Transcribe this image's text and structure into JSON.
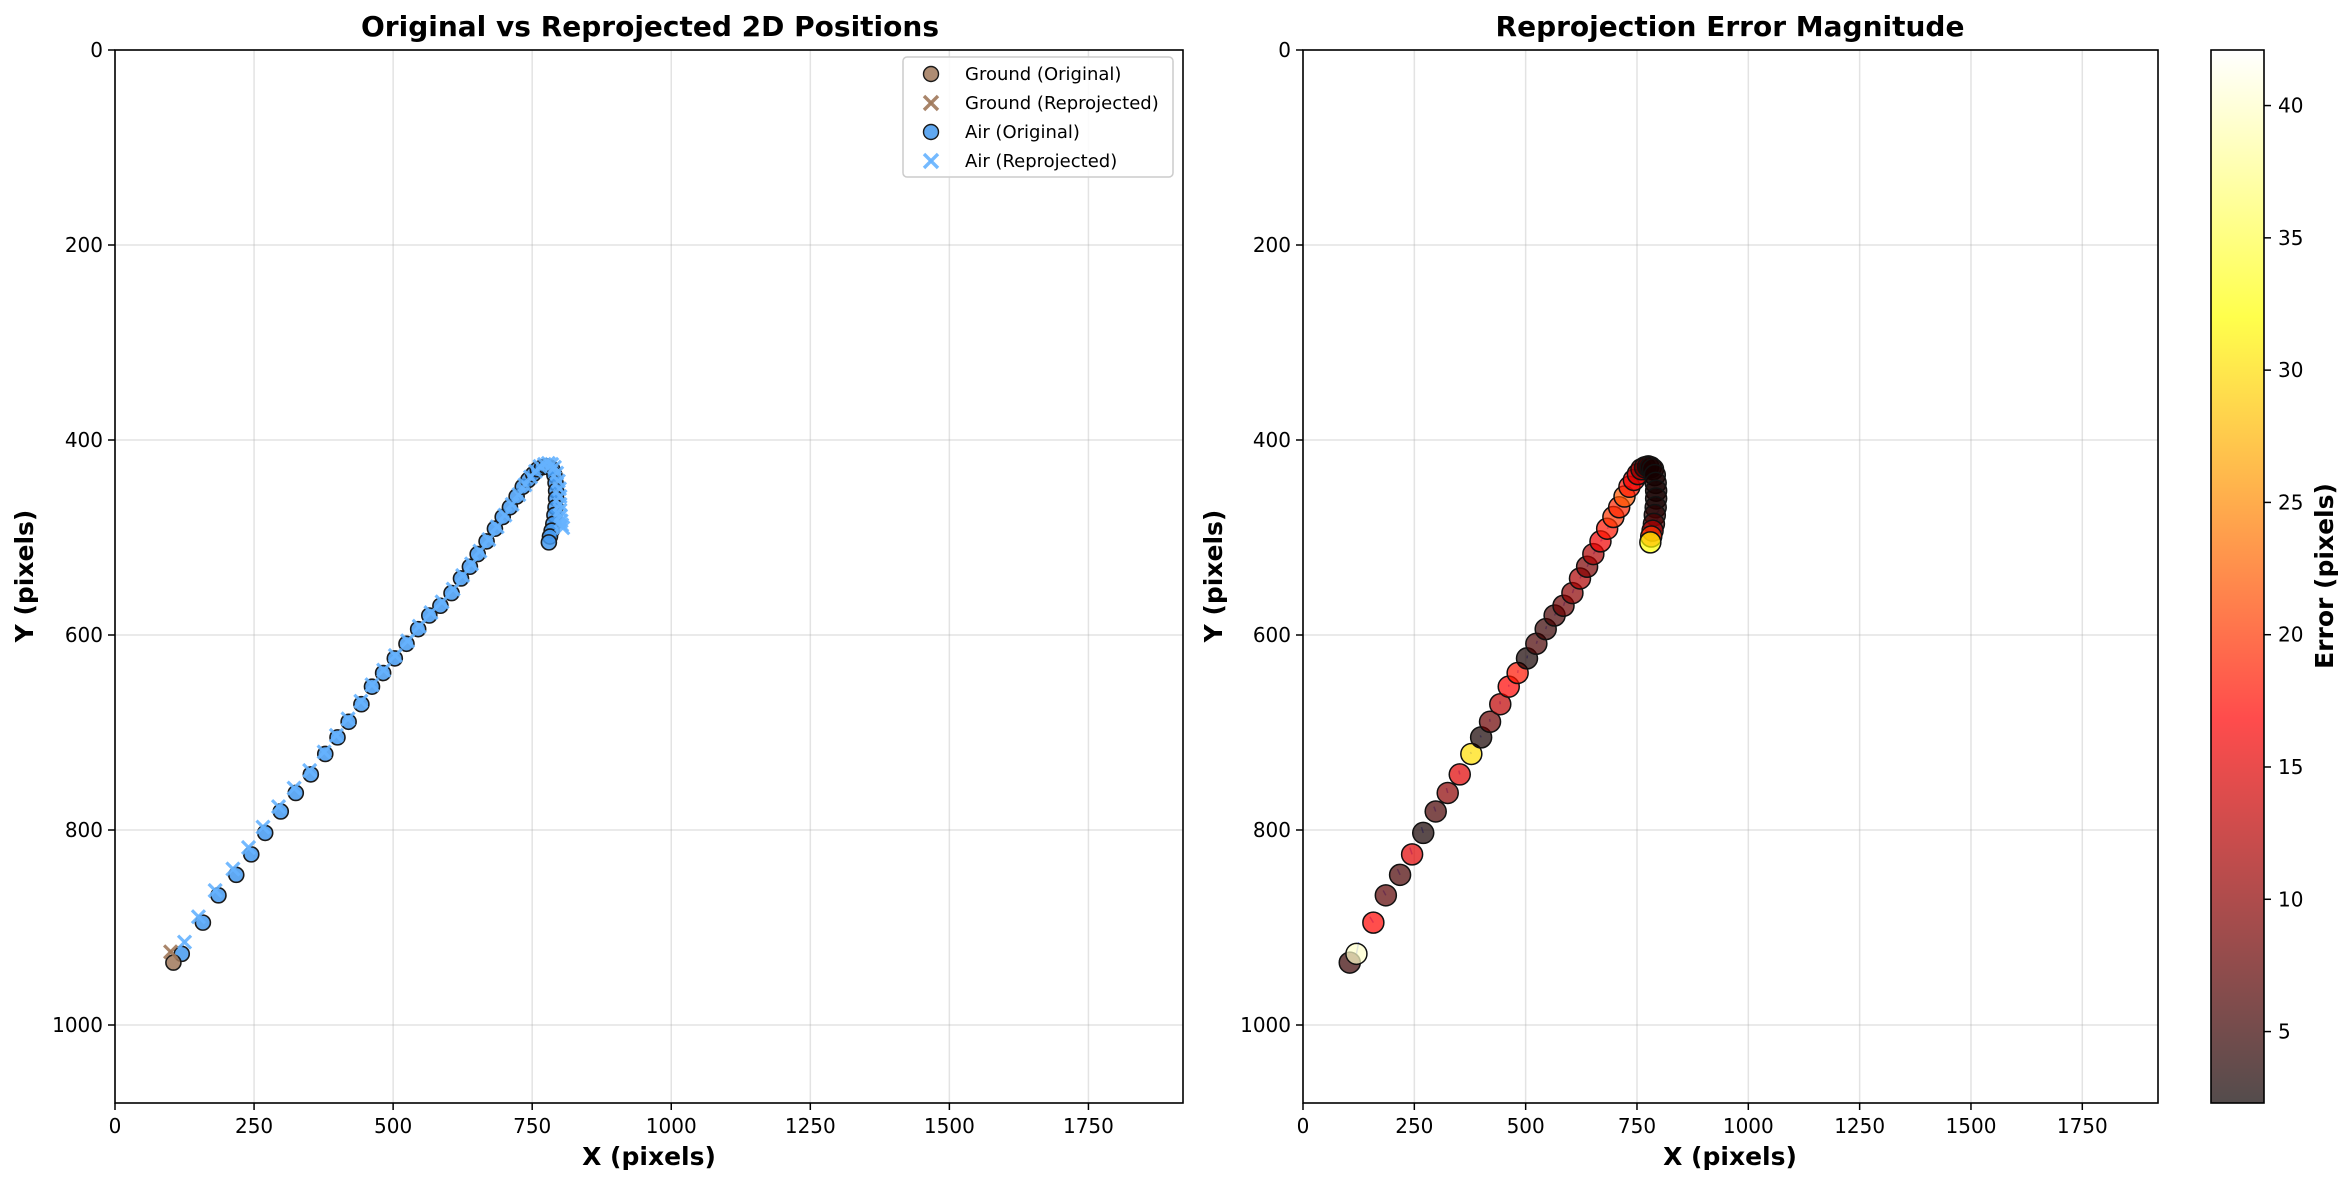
{
  "chart_data": [
    {
      "type": "scatter",
      "title": "Original vs Reprojected 2D Positions",
      "xlabel": "X (pixels)",
      "ylabel": "Y (pixels)",
      "xlim": [
        0,
        1920
      ],
      "ylim": [
        1080,
        0
      ],
      "y_inverted": true,
      "xticks": [
        0,
        250,
        500,
        750,
        1000,
        1250,
        1500,
        1750
      ],
      "yticks": [
        0,
        200,
        400,
        600,
        800,
        1000
      ],
      "grid": true,
      "legend_position": "top-right",
      "series": [
        {
          "name": "Ground (Original)",
          "marker": "circle",
          "color": "#a0785a",
          "x": [
            105
          ],
          "y": [
            936
          ]
        },
        {
          "name": "Ground (Reprojected)",
          "marker": "x",
          "color": "#a0785a",
          "x": [
            100
          ],
          "y": [
            925
          ]
        },
        {
          "name": "Air (Original)",
          "marker": "circle",
          "color": "#4499ee",
          "x": [
            120,
            158,
            186,
            218,
            245,
            270,
            298,
            325,
            352,
            378,
            400,
            420,
            443,
            462,
            482,
            503,
            524,
            545,
            565,
            585,
            605,
            622,
            638,
            652,
            668,
            683,
            697,
            710,
            722,
            733,
            743,
            752,
            760,
            768,
            775,
            781,
            786,
            790,
            792,
            793,
            793,
            792,
            790,
            788,
            785,
            782,
            780
          ],
          "y": [
            927,
            895,
            867,
            846,
            825,
            803,
            781,
            762,
            743,
            722,
            705,
            689,
            671,
            653,
            639,
            624,
            609,
            594,
            580,
            570,
            557,
            542,
            530,
            517,
            504,
            491,
            479,
            469,
            458,
            448,
            441,
            435,
            430,
            428,
            427,
            428,
            430,
            436,
            444,
            452,
            460,
            469,
            477,
            486,
            493,
            499,
            505
          ]
        },
        {
          "name": "Air (Reprojected)",
          "marker": "x",
          "color": "#66b3ff",
          "x": [
            125,
            150,
            180,
            212,
            240,
            266,
            294,
            322,
            350,
            376,
            398,
            419,
            442,
            462,
            483,
            504,
            526,
            547,
            568,
            588,
            608,
            625,
            641,
            656,
            672,
            687,
            701,
            714,
            726,
            737,
            747,
            756,
            764,
            772,
            779,
            785,
            790,
            794,
            797,
            799,
            800,
            800,
            800,
            801,
            802,
            803,
            805
          ],
          "y": [
            915,
            889,
            862,
            840,
            818,
            797,
            776,
            757,
            739,
            720,
            703,
            686,
            668,
            651,
            636,
            621,
            606,
            591,
            577,
            566,
            553,
            539,
            527,
            514,
            502,
            489,
            477,
            466,
            456,
            446,
            438,
            432,
            427,
            425,
            424,
            425,
            428,
            434,
            442,
            450,
            458,
            466,
            472,
            478,
            483,
            487,
            490
          ]
        }
      ]
    },
    {
      "type": "scatter",
      "title": "Reprojection Error Magnitude",
      "xlabel": "X (pixels)",
      "ylabel": "Y (pixels)",
      "xlim": [
        0,
        1920
      ],
      "ylim": [
        1080,
        0
      ],
      "y_inverted": true,
      "xticks": [
        0,
        250,
        500,
        750,
        1000,
        1250,
        1500,
        1750
      ],
      "yticks": [
        0,
        200,
        400,
        600,
        800,
        1000
      ],
      "grid": true,
      "colormap": "hot",
      "colorbar": {
        "label": "Error (pixels)",
        "range": [
          2.3,
          42.1
        ],
        "ticks": [
          5,
          10,
          15,
          20,
          25,
          30,
          35,
          40
        ]
      },
      "points": {
        "x": [
          105,
          120,
          158,
          186,
          218,
          245,
          270,
          298,
          325,
          352,
          378,
          400,
          420,
          443,
          462,
          482,
          503,
          524,
          545,
          565,
          585,
          605,
          622,
          638,
          652,
          668,
          683,
          697,
          710,
          722,
          733,
          743,
          752,
          760,
          768,
          775,
          781,
          786,
          790,
          792,
          793,
          793,
          792,
          790,
          788,
          785,
          782,
          780
        ],
        "y": [
          936,
          927,
          895,
          867,
          846,
          825,
          803,
          781,
          762,
          743,
          722,
          705,
          689,
          671,
          653,
          639,
          624,
          609,
          594,
          580,
          570,
          557,
          542,
          530,
          517,
          504,
          491,
          479,
          469,
          458,
          448,
          441,
          435,
          430,
          428,
          427,
          428,
          430,
          436,
          444,
          452,
          460,
          469,
          477,
          486,
          493,
          499,
          505
        ],
        "error": [
          5,
          40,
          17,
          7,
          6,
          15,
          3,
          6,
          10,
          15,
          30,
          3,
          8,
          13,
          17,
          18,
          3,
          6,
          5,
          6,
          8,
          10,
          12,
          9,
          12,
          16,
          18,
          20,
          19,
          22,
          18,
          16,
          14,
          10,
          6,
          4,
          3,
          3,
          3,
          3,
          3,
          3,
          3,
          4,
          6,
          12,
          20,
          32
        ]
      }
    }
  ]
}
